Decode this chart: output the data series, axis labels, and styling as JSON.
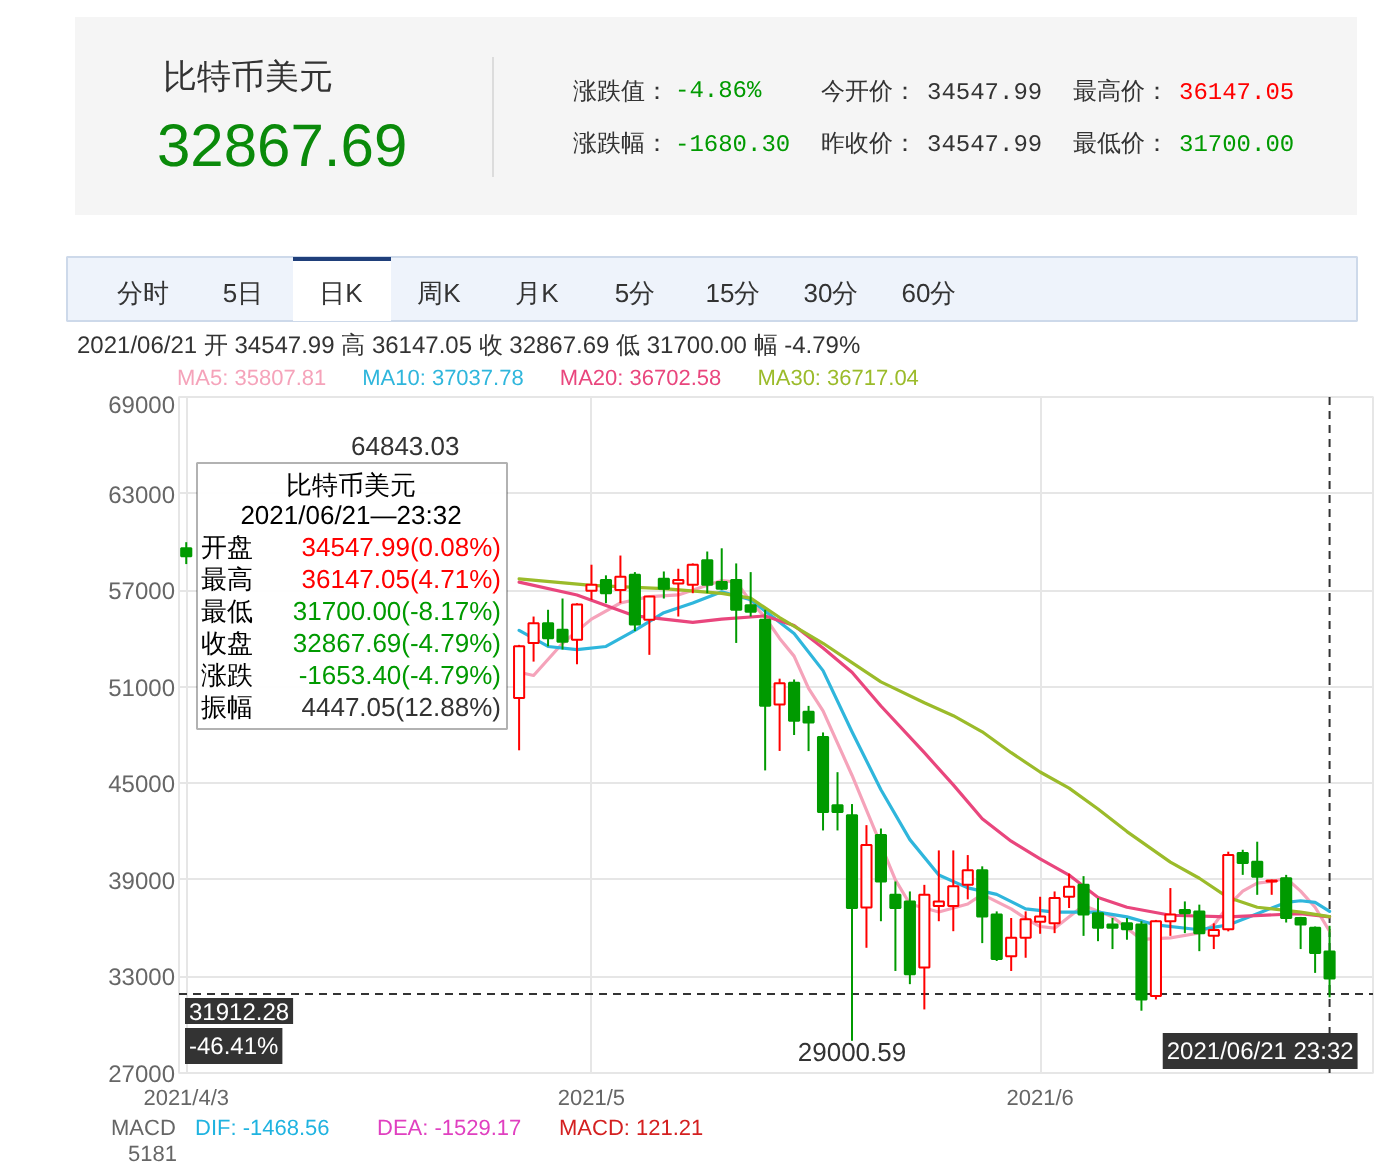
{
  "chart_data": {
    "type": "candlestick",
    "title": "比特币美元",
    "subtitle": "32867.69",
    "x": [
      "2021-04-03",
      "2021-04-26",
      "2021-04-27",
      "2021-04-28",
      "2021-04-29",
      "2021-04-30",
      "2021-05-01",
      "2021-05-02",
      "2021-05-03",
      "2021-05-04",
      "2021-05-05",
      "2021-05-06",
      "2021-05-07",
      "2021-05-08",
      "2021-05-09",
      "2021-05-10",
      "2021-05-11",
      "2021-05-12",
      "2021-05-13",
      "2021-05-14",
      "2021-05-15",
      "2021-05-16",
      "2021-05-17",
      "2021-05-18",
      "2021-05-19",
      "2021-05-20",
      "2021-05-21",
      "2021-05-22",
      "2021-05-23",
      "2021-05-24",
      "2021-05-25",
      "2021-05-26",
      "2021-05-27",
      "2021-05-28",
      "2021-05-29",
      "2021-05-30",
      "2021-05-31",
      "2021-06-01",
      "2021-06-02",
      "2021-06-03",
      "2021-06-04",
      "2021-06-05",
      "2021-06-06",
      "2021-06-07",
      "2021-06-08",
      "2021-06-09",
      "2021-06-10",
      "2021-06-11",
      "2021-06-12",
      "2021-06-13",
      "2021-06-14",
      "2021-06-15",
      "2021-06-16",
      "2021-06-17",
      "2021-06-18",
      "2021-06-19",
      "2021-06-20",
      "2021-06-21"
    ],
    "ohlc": [
      [
        59600,
        59980,
        58620,
        59110
      ],
      [
        50300,
        53600,
        47050,
        53510
      ],
      [
        53720,
        55360,
        52560,
        54950
      ],
      [
        54950,
        55780,
        53510,
        54010
      ],
      [
        54540,
        56480,
        53310,
        53800
      ],
      [
        53920,
        56190,
        52400,
        56110
      ],
      [
        56970,
        58580,
        56390,
        57340
      ],
      [
        57630,
        57920,
        56190,
        56810
      ],
      [
        57010,
        59150,
        56190,
        57830
      ],
      [
        57960,
        58120,
        54460,
        54870
      ],
      [
        55160,
        56640,
        52980,
        56600
      ],
      [
        57710,
        58160,
        56480,
        57090
      ],
      [
        57420,
        58330,
        55360,
        57630
      ],
      [
        57340,
        58660,
        56810,
        58580
      ],
      [
        58860,
        59400,
        56810,
        57340
      ],
      [
        57510,
        59600,
        57010,
        57090
      ],
      [
        57630,
        58660,
        53720,
        55780
      ],
      [
        56060,
        58120,
        55360,
        55650
      ],
      [
        55160,
        55780,
        45800,
        49810
      ],
      [
        49900,
        51500,
        47010,
        51210
      ],
      [
        51250,
        51450,
        48000,
        48880
      ],
      [
        49440,
        49810,
        47000,
        48780
      ],
      [
        47870,
        48160,
        42070,
        43220
      ],
      [
        43630,
        45690,
        42070,
        43220
      ],
      [
        43010,
        43710,
        29000.59,
        37250
      ],
      [
        37290,
        42400,
        34780,
        41160
      ],
      [
        41780,
        42190,
        36430,
        38900
      ],
      [
        38070,
        38900,
        33340,
        37250
      ],
      [
        37660,
        38280,
        32520,
        33130
      ],
      [
        33550,
        38690,
        30950,
        38070
      ],
      [
        37370,
        40830,
        36430,
        37660
      ],
      [
        37370,
        40830,
        35810,
        38610
      ],
      [
        38690,
        40540,
        37790,
        39600
      ],
      [
        39600,
        39840,
        35070,
        36720
      ],
      [
        36840,
        37040,
        33960,
        34080
      ],
      [
        34250,
        36630,
        33340,
        35400
      ],
      [
        35400,
        37040,
        34160,
        36550
      ],
      [
        36400,
        37950,
        35650,
        36720
      ],
      [
        36300,
        38280,
        35690,
        37870
      ],
      [
        37950,
        39390,
        37250,
        38570
      ],
      [
        38690,
        39230,
        35520,
        36840
      ],
      [
        36920,
        37870,
        35190,
        36020
      ],
      [
        36220,
        36630,
        34700,
        36020
      ],
      [
        36300,
        36630,
        35280,
        35930
      ],
      [
        36220,
        36430,
        30870,
        31570
      ],
      [
        31780,
        36510,
        31570,
        36430
      ],
      [
        36430,
        38490,
        35520,
        36840
      ],
      [
        37130,
        37660,
        35690,
        36920
      ],
      [
        37040,
        37460,
        34570,
        35690
      ],
      [
        35520,
        36300,
        34700,
        35890
      ],
      [
        35930,
        40750,
        35800,
        40540
      ],
      [
        40670,
        40870,
        39310,
        40050
      ],
      [
        40130,
        41370,
        38070,
        39190
      ],
      [
        38900,
        39020,
        38070,
        38960
      ],
      [
        39100,
        39310,
        36350,
        36630
      ],
      [
        36630,
        36700,
        34700,
        36220
      ],
      [
        36020,
        36100,
        33220,
        34450
      ],
      [
        34547.99,
        36147.05,
        31700,
        32867.69
      ]
    ],
    "colors": [
      "#009a00",
      "#ff0000",
      "#ff0000",
      "#009a00",
      "#009a00",
      "#ff0000",
      "#ff0000",
      "#009a00",
      "#ff0000",
      "#009a00",
      "#ff0000",
      "#009a00",
      "#ff0000",
      "#ff0000",
      "#009a00",
      "#009a00",
      "#009a00",
      "#009a00",
      "#009a00",
      "#ff0000",
      "#009a00",
      "#009a00",
      "#009a00",
      "#009a00",
      "#009a00",
      "#ff0000",
      "#009a00",
      "#009a00",
      "#009a00",
      "#ff0000",
      "#ff0000",
      "#ff0000",
      "#ff0000",
      "#009a00",
      "#009a00",
      "#ff0000",
      "#ff0000",
      "#ff0000",
      "#ff0000",
      "#ff0000",
      "#009a00",
      "#009a00",
      "#009a00",
      "#009a00",
      "#009a00",
      "#ff0000",
      "#ff0000",
      "#009a00",
      "#009a00",
      "#ff0000",
      "#ff0000",
      "#009a00",
      "#009a00",
      "#ff0000",
      "#009a00",
      "#009a00",
      "#009a00",
      "#009a00"
    ],
    "series": [
      {
        "name": "MA5: 35807.81",
        "type": "line",
        "color": "#f5a3ba",
        "x": [
          "2021-04-26",
          "2021-04-27",
          "2021-04-29",
          "2021-05-01",
          "2021-05-03",
          "2021-05-05",
          "2021-05-07",
          "2021-05-09",
          "2021-05-10",
          "2021-05-11",
          "2021-05-12",
          "2021-05-13",
          "2021-05-14",
          "2021-05-15",
          "2021-05-16",
          "2021-05-17",
          "2021-05-19",
          "2021-05-22",
          "2021-05-23",
          "2021-05-25",
          "2021-05-27",
          "2021-05-28",
          "2021-05-30",
          "2021-05-31",
          "2021-06-01",
          "2021-06-02",
          "2021-06-04",
          "2021-06-06",
          "2021-06-08",
          "2021-06-10",
          "2021-06-12",
          "2021-06-13",
          "2021-06-14",
          "2021-06-15",
          "2021-06-16",
          "2021-06-17",
          "2021-06-18",
          "2021-06-19",
          "2021-06-20",
          "2021-06-21"
        ],
        "values": [
          51900,
          51700,
          53700,
          55200,
          56200,
          56600,
          56700,
          57300,
          57600,
          57500,
          56300,
          55300,
          54000,
          52900,
          50900,
          49500,
          45500,
          39000,
          37500,
          37000,
          37500,
          38100,
          37200,
          36600,
          36100,
          36000,
          37400,
          36700,
          35300,
          35400,
          35700,
          36200,
          37400,
          38300,
          38800,
          38900,
          39100,
          38300,
          37300,
          35807.81
        ]
      },
      {
        "name": "MA10: 37037.78",
        "type": "line",
        "color": "#2fb6dc",
        "x": [
          "2021-04-26",
          "2021-04-28",
          "2021-04-30",
          "2021-05-02",
          "2021-05-04",
          "2021-05-06",
          "2021-05-08",
          "2021-05-10",
          "2021-05-12",
          "2021-05-14",
          "2021-05-15",
          "2021-05-17",
          "2021-05-19",
          "2021-05-21",
          "2021-05-23",
          "2021-05-25",
          "2021-05-27",
          "2021-05-29",
          "2021-05-31",
          "2021-06-02",
          "2021-06-05",
          "2021-06-07",
          "2021-06-09",
          "2021-06-12",
          "2021-06-14",
          "2021-06-16",
          "2021-06-18",
          "2021-06-19",
          "2021-06-20",
          "2021-06-21"
        ],
        "values": [
          54500,
          53500,
          53300,
          53500,
          54500,
          55600,
          56200,
          56900,
          56400,
          55000,
          54300,
          52000,
          48200,
          44600,
          41500,
          39300,
          38500,
          38100,
          37200,
          37000,
          37000,
          36700,
          36200,
          35900,
          36200,
          36900,
          37600,
          37700,
          37600,
          37037.78
        ]
      },
      {
        "name": "MA20: 36702.58",
        "type": "line",
        "color": "#e9467d",
        "x": [
          "2021-04-26",
          "2021-04-30",
          "2021-05-04",
          "2021-05-08",
          "2021-05-10",
          "2021-05-13",
          "2021-05-15",
          "2021-05-17",
          "2021-05-19",
          "2021-05-21",
          "2021-05-24",
          "2021-05-26",
          "2021-05-28",
          "2021-05-30",
          "2021-06-01",
          "2021-06-03",
          "2021-06-05",
          "2021-06-07",
          "2021-06-10",
          "2021-06-14",
          "2021-06-19",
          "2021-06-21"
        ],
        "values": [
          57500,
          56700,
          55400,
          55000,
          55200,
          55400,
          54800,
          53400,
          51900,
          49800,
          46900,
          44900,
          42800,
          41400,
          40300,
          39300,
          37900,
          37300,
          36800,
          36700,
          36900,
          36702.58
        ]
      },
      {
        "name": "MA30: 36717.04",
        "type": "line",
        "color": "#9bbb2a",
        "x": [
          "2021-04-26",
          "2021-05-01",
          "2021-05-06",
          "2021-05-10",
          "2021-05-12",
          "2021-05-14",
          "2021-05-17",
          "2021-05-19",
          "2021-05-21",
          "2021-05-24",
          "2021-05-26",
          "2021-05-28",
          "2021-05-30",
          "2021-06-01",
          "2021-06-03",
          "2021-06-05",
          "2021-06-07",
          "2021-06-10",
          "2021-06-12",
          "2021-06-14",
          "2021-06-16",
          "2021-06-19",
          "2021-06-21"
        ],
        "values": [
          57700,
          57300,
          57100,
          56800,
          56500,
          55300,
          53700,
          52500,
          51300,
          50000,
          49200,
          48200,
          46900,
          45700,
          44700,
          43400,
          42000,
          40100,
          39100,
          37900,
          37300,
          37000,
          36717.04
        ]
      }
    ],
    "xlim": [
      "2021-04-02T12:00",
      "2021-06-24"
    ],
    "xticks": [
      {
        "value": "2021-04-03",
        "label": "2021/4/3"
      },
      {
        "value": "2021-05-01",
        "label": "2021/5"
      },
      {
        "value": "2021-06-01",
        "label": "2021/6"
      }
    ],
    "ylim": [
      27000,
      69000
    ],
    "yticks": [
      27000,
      33000,
      39000,
      45000,
      51000,
      57000,
      63000,
      69000
    ],
    "grid": true,
    "legend": "top",
    "ref_lines": [
      {
        "axis": "y",
        "value": 31912.28,
        "label": "31912.28",
        "color": "#333333",
        "line_style": "dashed"
      },
      {
        "axis": "x",
        "value": "2021-06-21",
        "label": "2021/06/21 23:32",
        "color": "#333333",
        "line_style": "dashed"
      }
    ],
    "annotations": [
      "涨跌值：",
      "-4.86%",
      "今开价：",
      "34547.99",
      "最高价：",
      "36147.05",
      "涨跌幅：",
      "-1680.30",
      "昨收价：",
      "34547.99",
      "最低价：",
      "31700.00",
      "分时",
      "5日",
      "日K",
      "周K",
      "月K",
      "5分",
      "15分",
      "30分",
      "60分",
      "2021/06/21 开 34547.99 高 36147.05 收 32867.69 低 31700.00 幅 -4.79%",
      "64843.03",
      {
        "text": "29000.59",
        "x": "2021-05-19",
        "y": 29000.59
      },
      "-46.41%",
      "比特币美元",
      "2021/06/21—23:32",
      "开盘",
      "34547.99(0.08%)",
      "最高",
      "36147.05(4.71%)",
      "最低",
      "31700.00(-8.17%)",
      "收盘",
      "32867.69(-4.79%)",
      "涨跌",
      "-1653.40(-4.79%)",
      "振幅",
      "4447.05(12.88%)",
      "MACD",
      "DIF: -1468.56",
      "DEA: -1529.17",
      "MACD: 121.21",
      "5181"
    ]
  }
}
